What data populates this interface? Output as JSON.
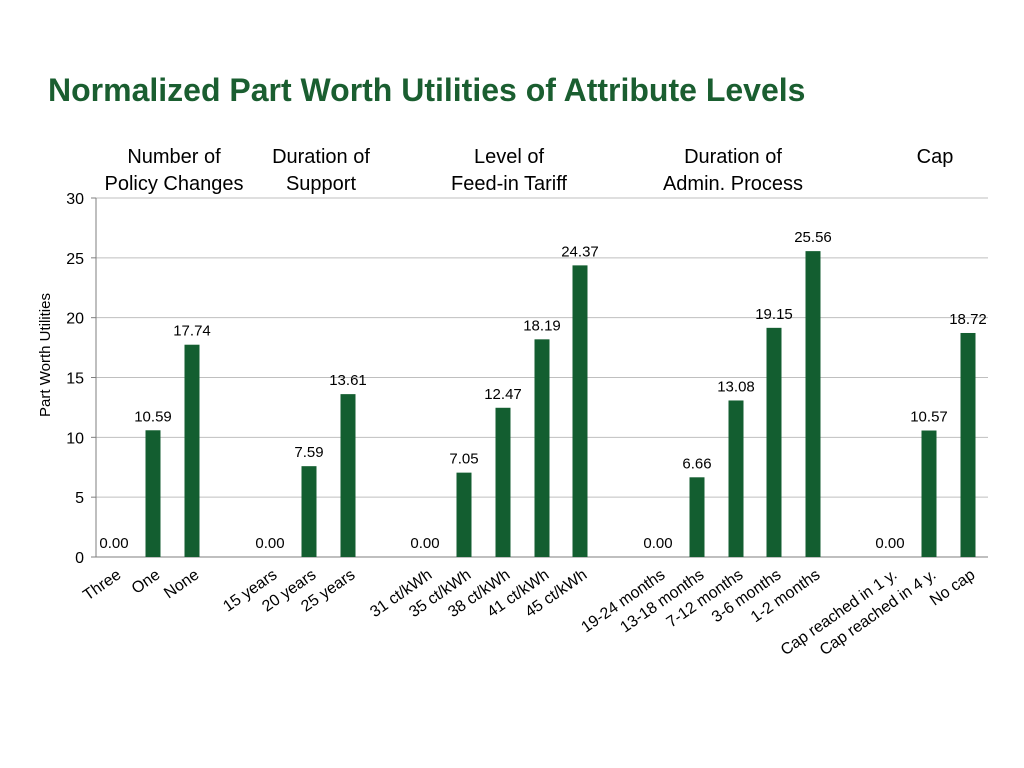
{
  "title": "Normalized Part Worth Utilities of Attribute Levels",
  "colors": {
    "title": "#1a5e30",
    "bar": "#135e30",
    "grid": "#bfbfbf",
    "axis": "#7f7f7f"
  },
  "chart_data": {
    "type": "bar",
    "ylabel": "Part Worth Utilities",
    "ylim": [
      0,
      30
    ],
    "yticks": [
      0,
      5,
      10,
      15,
      20,
      25,
      30
    ],
    "grid": true,
    "groups": [
      {
        "name": "Number of Policy Changes",
        "header_lines": [
          "Number of",
          "Policy Changes"
        ],
        "categories": [
          "Three",
          "One",
          "None"
        ],
        "values": [
          0.0,
          10.59,
          17.74
        ]
      },
      {
        "name": "Duration of Support",
        "header_lines": [
          "Duration of",
          "Support"
        ],
        "categories": [
          "15 years",
          "20 years",
          "25 years"
        ],
        "values": [
          0.0,
          7.59,
          13.61
        ]
      },
      {
        "name": "Level of Feed-in Tariff",
        "header_lines": [
          "Level of",
          "Feed-in Tariff"
        ],
        "categories": [
          "31 ct/kWh",
          "35 ct/kWh",
          "38 ct/kWh",
          "41 ct/kWh",
          "45 ct/kWh"
        ],
        "values": [
          0.0,
          7.05,
          12.47,
          18.19,
          24.37
        ]
      },
      {
        "name": "Duration of Admin. Process",
        "header_lines": [
          "Duration of",
          "Admin. Process"
        ],
        "categories": [
          "19-24 months",
          "13-18 months",
          "7-12 months",
          "3-6 months",
          "1-2 months"
        ],
        "values": [
          0.0,
          6.66,
          13.08,
          19.15,
          25.56
        ]
      },
      {
        "name": "Cap",
        "header_lines": [
          "Cap"
        ],
        "categories": [
          "Cap reached in 1 y.",
          "Cap reached in 4 y.",
          "No cap"
        ],
        "values": [
          0.0,
          10.57,
          18.72
        ]
      }
    ]
  }
}
